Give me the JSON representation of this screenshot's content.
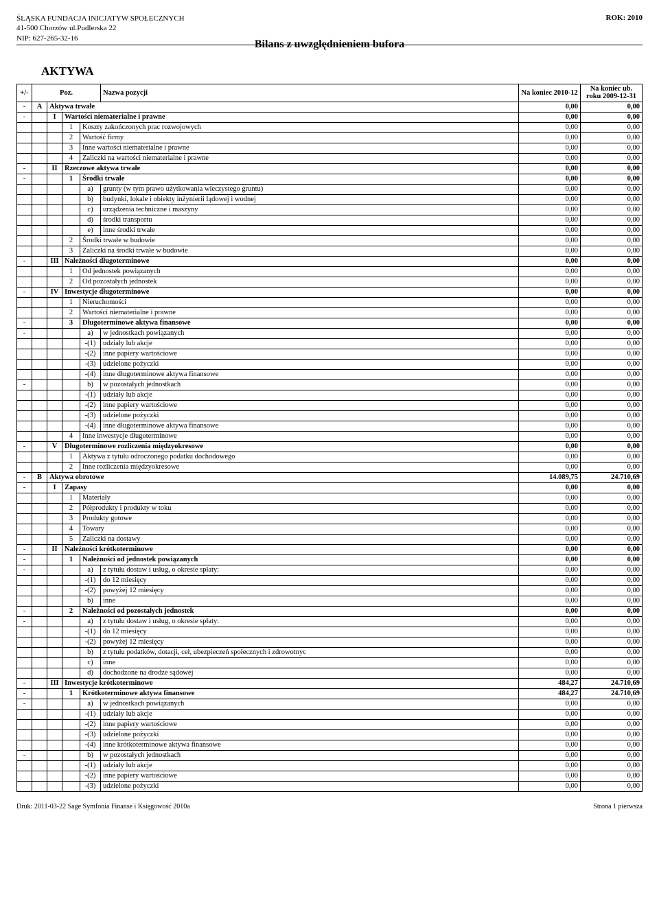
{
  "header": {
    "org_name": "ŚLĄSKA FUNDACJA INICJATYW SPOŁECZNYCH",
    "addr": "41-500 Chorzów ul.Pudlerska 22",
    "nip": "NIP: 627-265-32-16",
    "year": "ROK: 2010"
  },
  "doc_title": "Bilans z uwzględnieniem bufora",
  "section_title": "AKTYWA",
  "col_headers": {
    "sign": "+/-",
    "poz": "Poz.",
    "name": "Nazwa pozycji",
    "end": "Na koniec\n2010-12",
    "prev": "Na koniec ub. roku\n2009-12-31"
  },
  "rows": [
    {
      "t": "A",
      "sign": "-",
      "roman": "A",
      "name": "Aktywa trwałe",
      "v1": "0,00",
      "v2": "0,00"
    },
    {
      "t": "I",
      "sign": "-",
      "roman": "I",
      "name": "Wartości niematerialne i prawne",
      "v1": "0,00",
      "v2": "0,00"
    },
    {
      "t": "n",
      "num": "1",
      "name": "Koszty zakończonych prac rozwojowych",
      "v1": "0,00",
      "v2": "0,00"
    },
    {
      "t": "n",
      "num": "2",
      "name": "Wartość firmy",
      "v1": "0,00",
      "v2": "0,00"
    },
    {
      "t": "n",
      "num": "3",
      "name": "Inne wartości niematerialne i prawne",
      "v1": "0,00",
      "v2": "0,00"
    },
    {
      "t": "n",
      "num": "4",
      "name": "Zaliczki na wartości niematerialne i prawne",
      "v1": "0,00",
      "v2": "0,00"
    },
    {
      "t": "I",
      "sign": "-",
      "roman": "II",
      "name": "Rzeczowe aktywa trwałe",
      "v1": "0,00",
      "v2": "0,00"
    },
    {
      "t": "n",
      "sign": "-",
      "num": "1",
      "name": "Środki trwałe",
      "v1": "0,00",
      "v2": "0,00"
    },
    {
      "t": "s",
      "sub": "a)",
      "name": "grunty (w tym prawo użytkowania wieczystego gruntu)",
      "v1": "0,00",
      "v2": "0,00"
    },
    {
      "t": "s",
      "sub": "b)",
      "name": "budynki, lokale i obiekty inżynierii lądowej i wodnej",
      "v1": "0,00",
      "v2": "0,00"
    },
    {
      "t": "s",
      "sub": "c)",
      "name": "urządzenia techniczne i maszyny",
      "v1": "0,00",
      "v2": "0,00"
    },
    {
      "t": "s",
      "sub": "d)",
      "name": "środki transportu",
      "v1": "0,00",
      "v2": "0,00"
    },
    {
      "t": "s",
      "sub": "e)",
      "name": "inne środki trwałe",
      "v1": "0,00",
      "v2": "0,00"
    },
    {
      "t": "n",
      "num": "2",
      "name": "Środki trwałe w budowie",
      "v1": "0,00",
      "v2": "0,00"
    },
    {
      "t": "n",
      "num": "3",
      "name": "Zaliczki na środki trwałe w budowie",
      "v1": "0,00",
      "v2": "0,00"
    },
    {
      "t": "I",
      "sign": "-",
      "roman": "III",
      "name": "Należności długoterminowe",
      "v1": "0,00",
      "v2": "0,00"
    },
    {
      "t": "n",
      "num": "1",
      "name": "Od jednostek powiązanych",
      "v1": "0,00",
      "v2": "0,00"
    },
    {
      "t": "n",
      "num": "2",
      "name": "Od pozostałych jednostek",
      "v1": "0,00",
      "v2": "0,00"
    },
    {
      "t": "I",
      "sign": "-",
      "roman": "IV",
      "name": "Inwestycje długoterminowe",
      "v1": "0,00",
      "v2": "0,00"
    },
    {
      "t": "n",
      "num": "1",
      "name": "Nieruchomości",
      "v1": "0,00",
      "v2": "0,00"
    },
    {
      "t": "n",
      "num": "2",
      "name": "Wartości niematerialne i prawne",
      "v1": "0,00",
      "v2": "0,00"
    },
    {
      "t": "n",
      "sign": "-",
      "num": "3",
      "name": "Długoterminowe aktywa finansowe",
      "v1": "0,00",
      "v2": "0,00"
    },
    {
      "t": "s",
      "sign": "-",
      "sub": "a)",
      "name": "w jednostkach powiązanych",
      "v1": "0,00",
      "v2": "0,00"
    },
    {
      "t": "s2",
      "sub2": "-(1)",
      "name": "udziały lub akcje",
      "v1": "0,00",
      "v2": "0,00"
    },
    {
      "t": "s2",
      "sub2": "-(2)",
      "name": "inne papiery wartościowe",
      "v1": "0,00",
      "v2": "0,00"
    },
    {
      "t": "s2",
      "sub2": "-(3)",
      "name": "udzielone pożyczki",
      "v1": "0,00",
      "v2": "0,00"
    },
    {
      "t": "s2",
      "sub2": "-(4)",
      "name": "inne długoterminowe aktywa finansowe",
      "v1": "0,00",
      "v2": "0,00"
    },
    {
      "t": "s",
      "sign": "-",
      "sub": "b)",
      "name": "w pozostałych jednostkach",
      "v1": "0,00",
      "v2": "0,00"
    },
    {
      "t": "s2",
      "sub2": "-(1)",
      "name": "udziały lub akcje",
      "v1": "0,00",
      "v2": "0,00"
    },
    {
      "t": "s2",
      "sub2": "-(2)",
      "name": "inne papiery wartościowe",
      "v1": "0,00",
      "v2": "0,00"
    },
    {
      "t": "s2",
      "sub2": "-(3)",
      "name": "udzielone pożyczki",
      "v1": "0,00",
      "v2": "0,00"
    },
    {
      "t": "s2",
      "sub2": "-(4)",
      "name": "inne długoterminowe aktywa finansowe",
      "v1": "0,00",
      "v2": "0,00"
    },
    {
      "t": "n",
      "num": "4",
      "name": "Inne inwestycje długoterminowe",
      "v1": "0,00",
      "v2": "0,00"
    },
    {
      "t": "I",
      "sign": "-",
      "roman": "V",
      "name": "Długoterminowe rozliczenia międzyokresowe",
      "v1": "0,00",
      "v2": "0,00"
    },
    {
      "t": "n",
      "num": "1",
      "name": "Aktywa z tytułu odroczonego podatku dochodowego",
      "v1": "0,00",
      "v2": "0,00"
    },
    {
      "t": "n",
      "num": "2",
      "name": "Inne rozliczenia międzyokresowe",
      "v1": "0,00",
      "v2": "0,00"
    },
    {
      "t": "A",
      "sign": "-",
      "roman": "B",
      "name": "Aktywa obrotowe",
      "v1": "14.089,75",
      "v2": "24.710,69"
    },
    {
      "t": "I",
      "sign": "-",
      "roman": "I",
      "name": "Zapasy",
      "v1": "0,00",
      "v2": "0,00"
    },
    {
      "t": "n",
      "num": "1",
      "name": "Materiały",
      "v1": "0,00",
      "v2": "0,00"
    },
    {
      "t": "n",
      "num": "2",
      "name": "Półprodukty i produkty w toku",
      "v1": "0,00",
      "v2": "0,00"
    },
    {
      "t": "n",
      "num": "3",
      "name": "Produkty gotowe",
      "v1": "0,00",
      "v2": "0,00"
    },
    {
      "t": "n",
      "num": "4",
      "name": "Towary",
      "v1": "0,00",
      "v2": "0,00"
    },
    {
      "t": "n",
      "num": "5",
      "name": "Zaliczki na dostawy",
      "v1": "0,00",
      "v2": "0,00"
    },
    {
      "t": "I",
      "sign": "-",
      "roman": "II",
      "name": "Należności krótkoterminowe",
      "v1": "0,00",
      "v2": "0,00"
    },
    {
      "t": "n",
      "sign": "-",
      "num": "1",
      "name": "Należności od jednostek powiązanych",
      "v1": "0,00",
      "v2": "0,00"
    },
    {
      "t": "s",
      "sign": "-",
      "sub": "a)",
      "name": "z tytułu dostaw i usług, o okresie spłaty:",
      "v1": "0,00",
      "v2": "0,00"
    },
    {
      "t": "s2",
      "sub2": "-(1)",
      "name": "do 12 miesięcy",
      "v1": "0,00",
      "v2": "0,00"
    },
    {
      "t": "s2",
      "sub2": "-(2)",
      "name": "powyżej 12 miesięcy",
      "v1": "0,00",
      "v2": "0,00"
    },
    {
      "t": "s",
      "sub": "b)",
      "name": "inne",
      "v1": "0,00",
      "v2": "0,00"
    },
    {
      "t": "n",
      "sign": "-",
      "num": "2",
      "name": "Należności od pozostałych jednostek",
      "v1": "0,00",
      "v2": "0,00"
    },
    {
      "t": "s",
      "sign": "-",
      "sub": "a)",
      "name": "z tytułu dostaw i usług, o okresie spłaty:",
      "v1": "0,00",
      "v2": "0,00"
    },
    {
      "t": "s2",
      "sub2": "-(1)",
      "name": "do 12 miesięcy",
      "v1": "0,00",
      "v2": "0,00"
    },
    {
      "t": "s2",
      "sub2": "-(2)",
      "name": "powyżej 12 miesięcy",
      "v1": "0,00",
      "v2": "0,00"
    },
    {
      "t": "s",
      "sub": "b)",
      "name": "z tytułu podatków, dotacji, ceł, ubezpieczeń społecznych i zdrowotnyc",
      "v1": "0,00",
      "v2": "0,00"
    },
    {
      "t": "s",
      "sub": "c)",
      "name": "inne",
      "v1": "0,00",
      "v2": "0,00"
    },
    {
      "t": "s",
      "sub": "d)",
      "name": "dochodzone na drodze sądowej",
      "v1": "0,00",
      "v2": "0,00"
    },
    {
      "t": "I",
      "sign": "-",
      "roman": "III",
      "name": "Inwestycje krótkoterminowe",
      "v1": "484,27",
      "v2": "24.710,69"
    },
    {
      "t": "n",
      "sign": "-",
      "num": "1",
      "name": "Krótkoterminowe aktywa finansowe",
      "v1": "484,27",
      "v2": "24.710,69"
    },
    {
      "t": "s",
      "sign": "-",
      "sub": "a)",
      "name": "w jednostkach powiązanych",
      "v1": "0,00",
      "v2": "0,00"
    },
    {
      "t": "s2",
      "sub2": "-(1)",
      "name": "udziały lub akcje",
      "v1": "0,00",
      "v2": "0,00"
    },
    {
      "t": "s2",
      "sub2": "-(2)",
      "name": "inne papiery wartościowe",
      "v1": "0,00",
      "v2": "0,00"
    },
    {
      "t": "s2",
      "sub2": "-(3)",
      "name": "udzielone pożyczki",
      "v1": "0,00",
      "v2": "0,00"
    },
    {
      "t": "s2",
      "sub2": "-(4)",
      "name": "inne krótkoterminowe aktywa finansowe",
      "v1": "0,00",
      "v2": "0,00"
    },
    {
      "t": "s",
      "sign": "-",
      "sub": "b)",
      "name": "w pozostałych jednostkach",
      "v1": "0,00",
      "v2": "0,00"
    },
    {
      "t": "s2",
      "sub2": "-(1)",
      "name": "udziały lub akcje",
      "v1": "0,00",
      "v2": "0,00"
    },
    {
      "t": "s2",
      "sub2": "-(2)",
      "name": "inne papiery wartościowe",
      "v1": "0,00",
      "v2": "0,00"
    },
    {
      "t": "s2",
      "sub2": "-(3)",
      "name": "udzielone pożyczki",
      "v1": "0,00",
      "v2": "0,00"
    }
  ],
  "footer": {
    "left": "Druk: 2011-03-22 Sage Symfonia Finanse i Księgowość 2010a",
    "right": "Strona 1 pierwsza"
  }
}
